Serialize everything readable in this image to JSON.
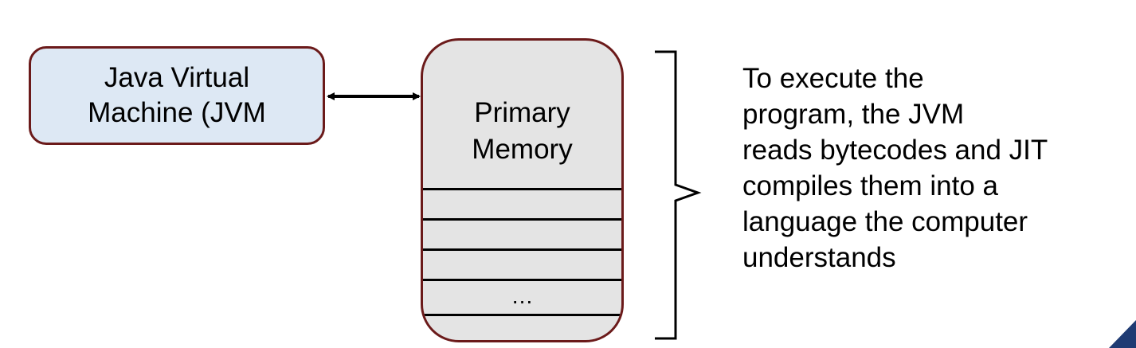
{
  "jvm": {
    "line1": "Java Virtual",
    "line2": "Machine (JVM"
  },
  "memory": {
    "line1": "Primary",
    "line2": "Memory",
    "ellipsis": "…"
  },
  "description": {
    "lines": [
      "To execute the",
      "program, the JVM",
      "reads bytecodes and JIT",
      "compiles them into a",
      "language the computer",
      "understands"
    ]
  },
  "colors": {
    "jvm_fill": "#dde8f4",
    "memory_fill": "#e4e4e4",
    "box_border": "#6b1a1a",
    "corner_accent": "#1f3b73"
  }
}
